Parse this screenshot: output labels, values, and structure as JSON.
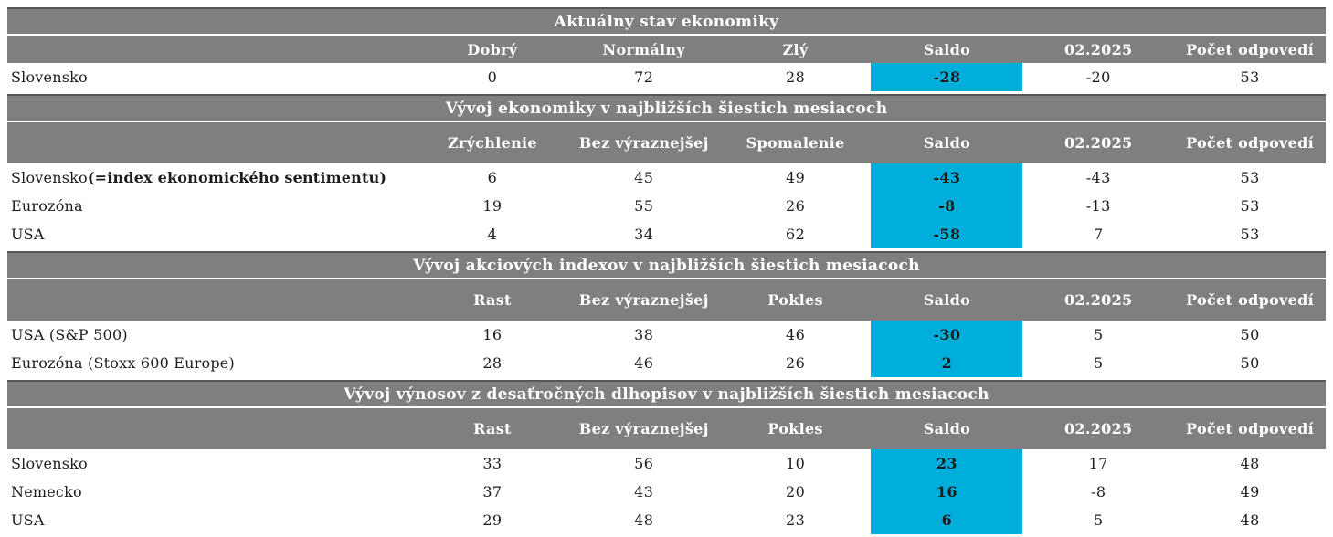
{
  "colors": {
    "header_gray": "#7f7f7f",
    "saldo_cyan": "#00aedb",
    "header_text": "#ffffff",
    "body_text": "#1c1c1c",
    "bar_top_edge": "#565656"
  },
  "chart_data": [
    {
      "type": "table",
      "title": "Aktuálny stav ekonomiky",
      "columns": [
        "Dobrý",
        "Normálny",
        "Zlý",
        "Saldo",
        "02.2025",
        "Počet odpovedí"
      ],
      "highlight_column": "Saldo",
      "rows": [
        {
          "label": "Slovensko",
          "values": [
            "0",
            "72",
            "28",
            "-28",
            "-20",
            "53"
          ]
        }
      ]
    },
    {
      "type": "table",
      "title": "Vývoj ekonomiky v najbližších šiestich mesiacoch",
      "columns": [
        "Zrýchlenie",
        "Bez výraznejšej",
        "Spomalenie",
        "Saldo",
        "02.2025",
        "Počet odpovedí"
      ],
      "highlight_column": "Saldo",
      "rows": [
        {
          "label": "Slovensko ",
          "label_bold": "(=index ekonomického sentimentu)",
          "values": [
            "6",
            "45",
            "49",
            "-43",
            "-43",
            "53"
          ]
        },
        {
          "label": "Eurozóna",
          "values": [
            "19",
            "55",
            "26",
            "-8",
            "-13",
            "53"
          ]
        },
        {
          "label": "USA",
          "values": [
            "4",
            "34",
            "62",
            "-58",
            "7",
            "53"
          ]
        }
      ]
    },
    {
      "type": "table",
      "title": "Vývoj akciových indexov v najbližších šiestich mesiacoch",
      "columns": [
        "Rast",
        "Bez výraznejšej",
        "Pokles",
        "Saldo",
        "02.2025",
        "Počet odpovedí"
      ],
      "highlight_column": "Saldo",
      "rows": [
        {
          "label": "USA (S&P 500)",
          "values": [
            "16",
            "38",
            "46",
            "-30",
            "5",
            "50"
          ]
        },
        {
          "label": "Eurozóna (Stoxx 600 Europe)",
          "values": [
            "28",
            "46",
            "26",
            "2",
            "5",
            "50"
          ]
        }
      ]
    },
    {
      "type": "table",
      "title": "Vývoj výnosov z desaťročných dlhopisov v najbližších šiestich mesiacoch",
      "columns": [
        "Rast",
        "Bez výraznejšej",
        "Pokles",
        "Saldo",
        "02.2025",
        "Počet odpovedí"
      ],
      "highlight_column": "Saldo",
      "rows": [
        {
          "label": "Slovensko",
          "values": [
            "33",
            "56",
            "10",
            "23",
            "17",
            "48"
          ]
        },
        {
          "label": "Nemecko",
          "values": [
            "37",
            "43",
            "20",
            "16",
            "-8",
            "49"
          ]
        },
        {
          "label": "USA",
          "values": [
            "29",
            "48",
            "23",
            "6",
            "5",
            "48"
          ]
        }
      ]
    }
  ]
}
